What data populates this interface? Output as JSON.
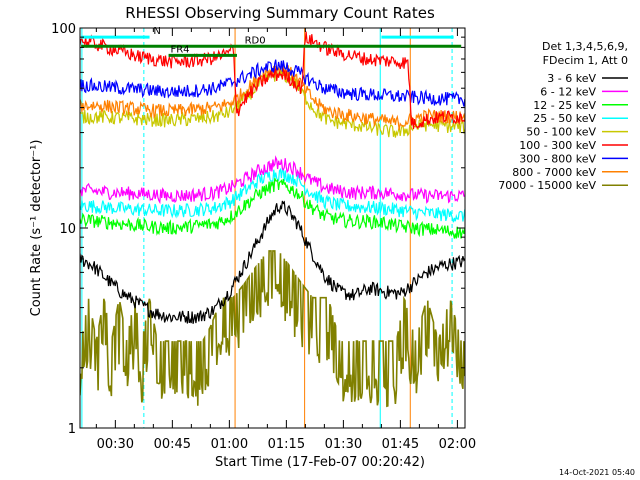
{
  "chart_data": {
    "type": "line",
    "title": "RHESSI Observing Summary Count Rates",
    "xlabel": "Start Time (17-Feb-07 00:20:42)",
    "ylabel": "Count Rate (s⁻¹ detector⁻¹)",
    "yscale": "log",
    "ylim": [
      1,
      100
    ],
    "y_ticks": [
      {
        "value": 1,
        "label": "1"
      },
      {
        "value": 10,
        "label": "10"
      },
      {
        "value": 100,
        "label": "100"
      }
    ],
    "xlim_minutes": [
      20.7,
      122
    ],
    "x_ticks": [
      {
        "minute": 30,
        "label": "00:30"
      },
      {
        "minute": 45,
        "label": "00:45"
      },
      {
        "minute": 60,
        "label": "01:00"
      },
      {
        "minute": 75,
        "label": "01:15"
      },
      {
        "minute": 90,
        "label": "01:30"
      },
      {
        "minute": 105,
        "label": "01:45"
      },
      {
        "minute": 120,
        "label": "02:00"
      }
    ],
    "legend_header": [
      "Det 1,3,4,5,6,9,",
      "FDecim 1, Att 0"
    ],
    "legend_position": "right",
    "series": [
      {
        "name": "3 - 6 keV",
        "color": "#000000",
        "points": [
          [
            21,
            7
          ],
          [
            24,
            6.5
          ],
          [
            28,
            5.5
          ],
          [
            32,
            4.7
          ],
          [
            36,
            4.2
          ],
          [
            40,
            3.8
          ],
          [
            44,
            3.6
          ],
          [
            48,
            3.6
          ],
          [
            52,
            3.6
          ],
          [
            56,
            3.9
          ],
          [
            60,
            4.8
          ],
          [
            64,
            6.5
          ],
          [
            68,
            9
          ],
          [
            71,
            11.5
          ],
          [
            73,
            13
          ],
          [
            75,
            12.5
          ],
          [
            78,
            10.5
          ],
          [
            81,
            8
          ],
          [
            85,
            5.8
          ],
          [
            89,
            4.8
          ],
          [
            93,
            4.6
          ],
          [
            97,
            5
          ],
          [
            101,
            4.8
          ],
          [
            105,
            4.7
          ],
          [
            108,
            5.2
          ],
          [
            112,
            6
          ],
          [
            116,
            6.5
          ],
          [
            121,
            6.8
          ]
        ]
      },
      {
        "name": "6 - 12 keV",
        "color": "#ff00ff",
        "points": [
          [
            21,
            15.5
          ],
          [
            26,
            15.2
          ],
          [
            32,
            15
          ],
          [
            38,
            14.8
          ],
          [
            44,
            14.5
          ],
          [
            50,
            14.6
          ],
          [
            56,
            15
          ],
          [
            60,
            15.8
          ],
          [
            64,
            17.5
          ],
          [
            68,
            19.5
          ],
          [
            72,
            21
          ],
          [
            75,
            20.8
          ],
          [
            78,
            19.5
          ],
          [
            81,
            17.5
          ],
          [
            85,
            16
          ],
          [
            89,
            15.3
          ],
          [
            93,
            15
          ],
          [
            97,
            15.1
          ],
          [
            101,
            15
          ],
          [
            105,
            14.8
          ],
          [
            109,
            14.6
          ],
          [
            114,
            14.5
          ],
          [
            121,
            14.5
          ]
        ]
      },
      {
        "name": "12 - 25 keV",
        "color": "#00ff00",
        "points": [
          [
            21,
            11
          ],
          [
            26,
            10.8
          ],
          [
            32,
            10.5
          ],
          [
            38,
            10.2
          ],
          [
            44,
            10
          ],
          [
            50,
            10.2
          ],
          [
            56,
            10.5
          ],
          [
            60,
            11.3
          ],
          [
            64,
            13
          ],
          [
            68,
            15
          ],
          [
            72,
            16.5
          ],
          [
            75,
            16.2
          ],
          [
            78,
            15
          ],
          [
            81,
            13
          ],
          [
            85,
            11.5
          ],
          [
            89,
            11
          ],
          [
            93,
            10.8
          ],
          [
            97,
            10.8
          ],
          [
            101,
            10.6
          ],
          [
            105,
            10.2
          ],
          [
            109,
            10
          ],
          [
            114,
            9.8
          ],
          [
            121,
            9.5
          ]
        ]
      },
      {
        "name": "25 - 50 keV",
        "color": "#00ffff",
        "points": [
          [
            21,
            13
          ],
          [
            26,
            12.8
          ],
          [
            32,
            12.5
          ],
          [
            38,
            12.3
          ],
          [
            44,
            12.2
          ],
          [
            50,
            12.3
          ],
          [
            56,
            12.6
          ],
          [
            60,
            13.5
          ],
          [
            64,
            15.3
          ],
          [
            68,
            17.5
          ],
          [
            72,
            18.8
          ],
          [
            75,
            18.5
          ],
          [
            78,
            17.3
          ],
          [
            81,
            15.3
          ],
          [
            85,
            13.6
          ],
          [
            89,
            13
          ],
          [
            93,
            12.8
          ],
          [
            97,
            12.7
          ],
          [
            101,
            12.5
          ],
          [
            105,
            12.3
          ],
          [
            109,
            12
          ],
          [
            114,
            11.8
          ],
          [
            121,
            11.5
          ]
        ]
      },
      {
        "name": "50 - 100 keV",
        "color": "#c8c800",
        "points": [
          [
            21,
            36
          ],
          [
            26,
            36
          ],
          [
            32,
            35.5
          ],
          [
            38,
            35
          ],
          [
            44,
            34.5
          ],
          [
            50,
            35
          ],
          [
            56,
            36
          ],
          [
            60,
            38
          ],
          [
            64,
            44
          ],
          [
            68,
            53
          ],
          [
            71,
            58
          ],
          [
            74,
            59
          ],
          [
            77,
            54
          ],
          [
            80,
            45
          ],
          [
            83,
            38
          ],
          [
            86,
            34.5
          ],
          [
            90,
            33.5
          ],
          [
            94,
            32.5
          ],
          [
            98,
            31.5
          ],
          [
            102,
            30.5
          ],
          [
            105,
            30
          ],
          [
            108,
            32
          ],
          [
            112,
            33
          ],
          [
            121,
            32
          ]
        ]
      },
      {
        "name": "100 - 300 keV",
        "color": "#ff0000",
        "points": [
          [
            21,
            87
          ],
          [
            24,
            84
          ],
          [
            28,
            80
          ],
          [
            32,
            76
          ],
          [
            36,
            72
          ],
          [
            40,
            70
          ],
          [
            44,
            68
          ],
          [
            48,
            68
          ],
          [
            52,
            69
          ],
          [
            56,
            71
          ],
          [
            60,
            75
          ],
          [
            61,
            80
          ],
          [
            62,
            38
          ],
          [
            64,
            44
          ],
          [
            68,
            53
          ],
          [
            71,
            58
          ],
          [
            74,
            59
          ],
          [
            77,
            54
          ],
          [
            79,
            50
          ],
          [
            80,
            90
          ],
          [
            82,
            86
          ],
          [
            85,
            80
          ],
          [
            88,
            76
          ],
          [
            92,
            73
          ],
          [
            96,
            70
          ],
          [
            100,
            69
          ],
          [
            104,
            68
          ],
          [
            107,
            67
          ],
          [
            108,
            33
          ],
          [
            112,
            35
          ],
          [
            116,
            36
          ],
          [
            121,
            36
          ]
        ]
      },
      {
        "name": "300 - 800 keV",
        "color": "#0000ff",
        "points": [
          [
            21,
            52
          ],
          [
            26,
            51
          ],
          [
            32,
            50
          ],
          [
            38,
            49
          ],
          [
            44,
            48
          ],
          [
            50,
            48.5
          ],
          [
            56,
            50
          ],
          [
            60,
            53
          ],
          [
            64,
            57
          ],
          [
            68,
            62
          ],
          [
            72,
            65
          ],
          [
            75,
            64
          ],
          [
            78,
            60
          ],
          [
            81,
            55
          ],
          [
            85,
            50
          ],
          [
            89,
            48
          ],
          [
            93,
            47
          ],
          [
            97,
            46.5
          ],
          [
            101,
            46
          ],
          [
            105,
            45.5
          ],
          [
            109,
            45
          ],
          [
            114,
            44.5
          ],
          [
            121,
            44
          ]
        ]
      },
      {
        "name": "800 - 7000 keV",
        "color": "#ff8000",
        "points": [
          [
            21,
            41
          ],
          [
            26,
            41
          ],
          [
            32,
            40
          ],
          [
            38,
            39
          ],
          [
            44,
            38.5
          ],
          [
            50,
            39
          ],
          [
            56,
            40
          ],
          [
            60,
            42
          ],
          [
            64,
            48
          ],
          [
            68,
            57
          ],
          [
            71,
            62
          ],
          [
            74,
            63
          ],
          [
            77,
            58
          ],
          [
            80,
            49
          ],
          [
            83,
            42
          ],
          [
            86,
            38.5
          ],
          [
            90,
            37
          ],
          [
            94,
            36
          ],
          [
            98,
            35
          ],
          [
            102,
            34
          ],
          [
            105,
            33.5
          ],
          [
            108,
            35
          ],
          [
            112,
            36.5
          ],
          [
            121,
            36
          ]
        ]
      },
      {
        "name": "7000 - 15000 keV",
        "color": "#808000",
        "points": [
          [
            21,
            1.7
          ],
          [
            23,
            2.8
          ],
          [
            25,
            1.7
          ],
          [
            27,
            2.8
          ],
          [
            29,
            1.7
          ],
          [
            31,
            2.8
          ],
          [
            33,
            1.7
          ],
          [
            35,
            2.8
          ],
          [
            37,
            1.7
          ],
          [
            39,
            2.8
          ],
          [
            41,
            1.7
          ],
          [
            43,
            1.7
          ],
          [
            45,
            1.7
          ],
          [
            47,
            1.7
          ],
          [
            49,
            1.7
          ],
          [
            51,
            1.7
          ],
          [
            53,
            1.7
          ],
          [
            55,
            2
          ],
          [
            58,
            2.8
          ],
          [
            61,
            2.8
          ],
          [
            64,
            3.3
          ],
          [
            67,
            4
          ],
          [
            70,
            4.8
          ],
          [
            73,
            4.8
          ],
          [
            76,
            4
          ],
          [
            79,
            3.3
          ],
          [
            82,
            2.8
          ],
          [
            86,
            2.8
          ],
          [
            89,
            1.7
          ],
          [
            92,
            1.7
          ],
          [
            95,
            1.7
          ],
          [
            98,
            1.7
          ],
          [
            101,
            1.7
          ],
          [
            104,
            1.7
          ],
          [
            106,
            2.8
          ],
          [
            109,
            1.7
          ],
          [
            112,
            2.8
          ],
          [
            115,
            1.7
          ],
          [
            118,
            2.8
          ],
          [
            121,
            1.7
          ]
        ]
      }
    ],
    "flag_lines": [
      {
        "label": "N",
        "color": "#00ffff",
        "y": 90,
        "segments": [
          [
            21,
            39
          ],
          [
            100,
            119
          ]
        ]
      },
      {
        "label": "RD0",
        "color": "#008000",
        "y": 81,
        "segments": [
          [
            21,
            121
          ]
        ]
      },
      {
        "label": "FR4",
        "color": "#008000",
        "y": 73,
        "segments": [
          [
            44,
            62
          ]
        ]
      }
    ],
    "vertical_lines": [
      {
        "minute": 21.2,
        "color": "#00ffff",
        "style": "solid"
      },
      {
        "minute": 37.5,
        "color": "#00ffff",
        "style": "dashed"
      },
      {
        "minute": 61.5,
        "color": "#ff8000",
        "style": "solid"
      },
      {
        "minute": 79.8,
        "color": "#ff8000",
        "style": "solid"
      },
      {
        "minute": 99.7,
        "color": "#00ffff",
        "style": "solid"
      },
      {
        "minute": 107.6,
        "color": "#ff8000",
        "style": "solid"
      },
      {
        "minute": 118.6,
        "color": "#00ffff",
        "style": "dashed"
      }
    ],
    "grid": false
  },
  "footer_timestamp": "14-Oct-2021 05:40"
}
